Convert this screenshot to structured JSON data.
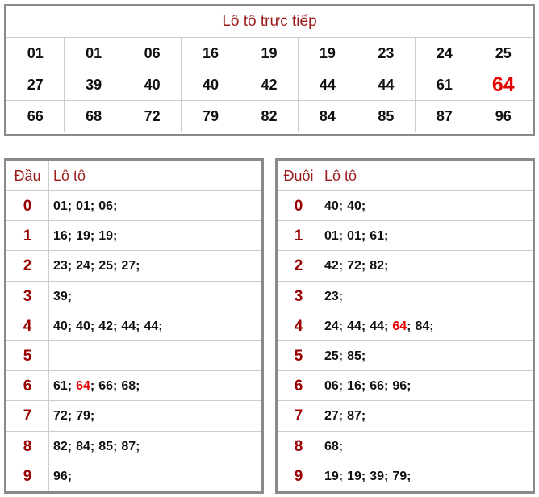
{
  "live": {
    "title": "Lô tô trực tiếp",
    "numbers": [
      "01",
      "01",
      "06",
      "16",
      "19",
      "19",
      "23",
      "24",
      "25",
      "27",
      "39",
      "40",
      "40",
      "42",
      "44",
      "44",
      "61",
      "64",
      "66",
      "68",
      "72",
      "79",
      "82",
      "84",
      "85",
      "87",
      "96"
    ],
    "highlight": "64"
  },
  "separator": ";",
  "head_table": {
    "headers": [
      "Đầu",
      "Lô tô"
    ],
    "rows": [
      {
        "key": "0",
        "numbers": [
          "01",
          "01",
          "06"
        ]
      },
      {
        "key": "1",
        "numbers": [
          "16",
          "19",
          "19"
        ]
      },
      {
        "key": "2",
        "numbers": [
          "23",
          "24",
          "25",
          "27"
        ]
      },
      {
        "key": "3",
        "numbers": [
          "39"
        ]
      },
      {
        "key": "4",
        "numbers": [
          "40",
          "40",
          "42",
          "44",
          "44"
        ]
      },
      {
        "key": "5",
        "numbers": []
      },
      {
        "key": "6",
        "numbers": [
          "61",
          "64",
          "66",
          "68"
        ]
      },
      {
        "key": "7",
        "numbers": [
          "72",
          "79"
        ]
      },
      {
        "key": "8",
        "numbers": [
          "82",
          "84",
          "85",
          "87"
        ]
      },
      {
        "key": "9",
        "numbers": [
          "96"
        ]
      }
    ]
  },
  "tail_table": {
    "headers": [
      "Đuôi",
      "Lô tô"
    ],
    "rows": [
      {
        "key": "0",
        "numbers": [
          "40",
          "40"
        ]
      },
      {
        "key": "1",
        "numbers": [
          "01",
          "01",
          "61"
        ]
      },
      {
        "key": "2",
        "numbers": [
          "42",
          "72",
          "82"
        ]
      },
      {
        "key": "3",
        "numbers": [
          "23"
        ]
      },
      {
        "key": "4",
        "numbers": [
          "24",
          "44",
          "44",
          "64",
          "84"
        ]
      },
      {
        "key": "5",
        "numbers": [
          "25",
          "85"
        ]
      },
      {
        "key": "6",
        "numbers": [
          "06",
          "16",
          "66",
          "96"
        ]
      },
      {
        "key": "7",
        "numbers": [
          "27",
          "87"
        ]
      },
      {
        "key": "8",
        "numbers": [
          "68"
        ]
      },
      {
        "key": "9",
        "numbers": [
          "19",
          "19",
          "39",
          "79"
        ]
      }
    ]
  }
}
